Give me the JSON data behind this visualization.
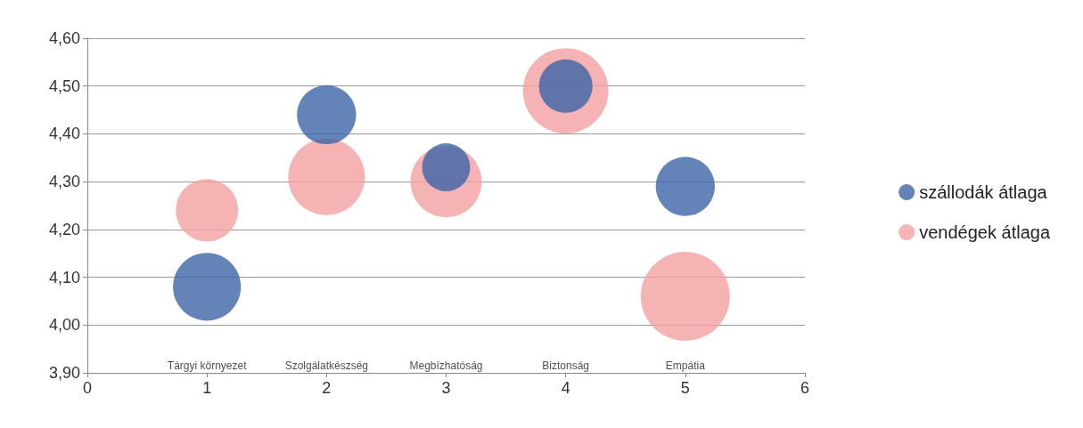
{
  "chart_data": {
    "type": "bubble",
    "series": [
      {
        "name": "szállodák átlaga",
        "color": "#3c64a8",
        "x": [
          1,
          2,
          3,
          4,
          5
        ],
        "values": [
          4.08,
          4.44,
          4.33,
          4.5,
          4.29
        ],
        "sizes": [
          0.58,
          0.44,
          0.29,
          0.36,
          0.44
        ]
      },
      {
        "name": "vendégek átlaga",
        "color": "#f2a0a0",
        "x": [
          1,
          2,
          3,
          4,
          5
        ],
        "values": [
          4.24,
          4.31,
          4.3,
          4.49,
          4.06
        ],
        "sizes": [
          0.49,
          0.74,
          0.64,
          0.92,
          1
        ]
      }
    ],
    "xlim": [
      0,
      6
    ],
    "xticks": [
      0,
      1,
      2,
      3,
      4,
      5,
      6
    ],
    "ylim": [
      3.9,
      4.6
    ],
    "yticks": [
      {
        "value": 3.9,
        "label": "3,90"
      },
      {
        "value": 4.0,
        "label": "4,00"
      },
      {
        "value": 4.1,
        "label": "4,10"
      },
      {
        "value": 4.2,
        "label": "4,20"
      },
      {
        "value": 4.3,
        "label": "4,30"
      },
      {
        "value": 4.4,
        "label": "4,40"
      },
      {
        "value": 4.5,
        "label": "4,50"
      },
      {
        "value": 4.6,
        "label": "4,60"
      }
    ],
    "grid": "y",
    "legend": "right",
    "annotations": [
      "Tárgyi környezet",
      "Szolgálatkészség",
      "Megbízhatóság",
      "Biztonság",
      "Empátia"
    ]
  }
}
